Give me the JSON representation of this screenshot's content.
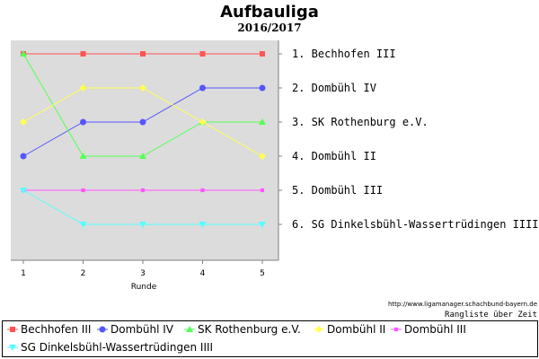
{
  "chart_data": {
    "type": "line",
    "title": "Aufbauliga",
    "subtitle": "2016/2017",
    "xlabel": "Runde",
    "x": [
      1,
      2,
      3,
      4,
      5
    ],
    "ylim": [
      1,
      6
    ],
    "y_inverted": true,
    "grid": false,
    "legend_position": "bottom",
    "rank_labels": [
      "1. Bechhofen III",
      "2. Dombühl IV",
      "3. SK Rothenburg e.V.",
      "4. Dombühl II",
      "5. Dombühl III",
      "6. SG Dinkelsbühl-Wassertrüdingen IIII"
    ],
    "series": [
      {
        "name": "Bechhofen III",
        "values": [
          1,
          1,
          1,
          1,
          1
        ],
        "color": "#ff5555",
        "marker": "square"
      },
      {
        "name": "Dombühl IV",
        "values": [
          4,
          3,
          3,
          2,
          2
        ],
        "color": "#5555ff",
        "marker": "circle"
      },
      {
        "name": "SK Rothenburg e.V.",
        "values": [
          1,
          4,
          4,
          3,
          3
        ],
        "color": "#55ff55",
        "marker": "triangle-up"
      },
      {
        "name": "Dombühl II",
        "values": [
          3,
          2,
          2,
          3,
          4
        ],
        "color": "#ffff55",
        "marker": "diamond"
      },
      {
        "name": "Dombühl III",
        "values": [
          5,
          5,
          5,
          5,
          5
        ],
        "color": "#ff55ff",
        "marker": "square-small"
      },
      {
        "name": "SG Dinkelsbühl-Wassertrüdingen IIII",
        "values": [
          5,
          6,
          6,
          6,
          6
        ],
        "color": "#55ffff",
        "marker": "triangle-down"
      }
    ]
  },
  "source_url": "http://www.ligamanager.schachbund-bayern.de",
  "footnote": "Rangliste über Zeit"
}
